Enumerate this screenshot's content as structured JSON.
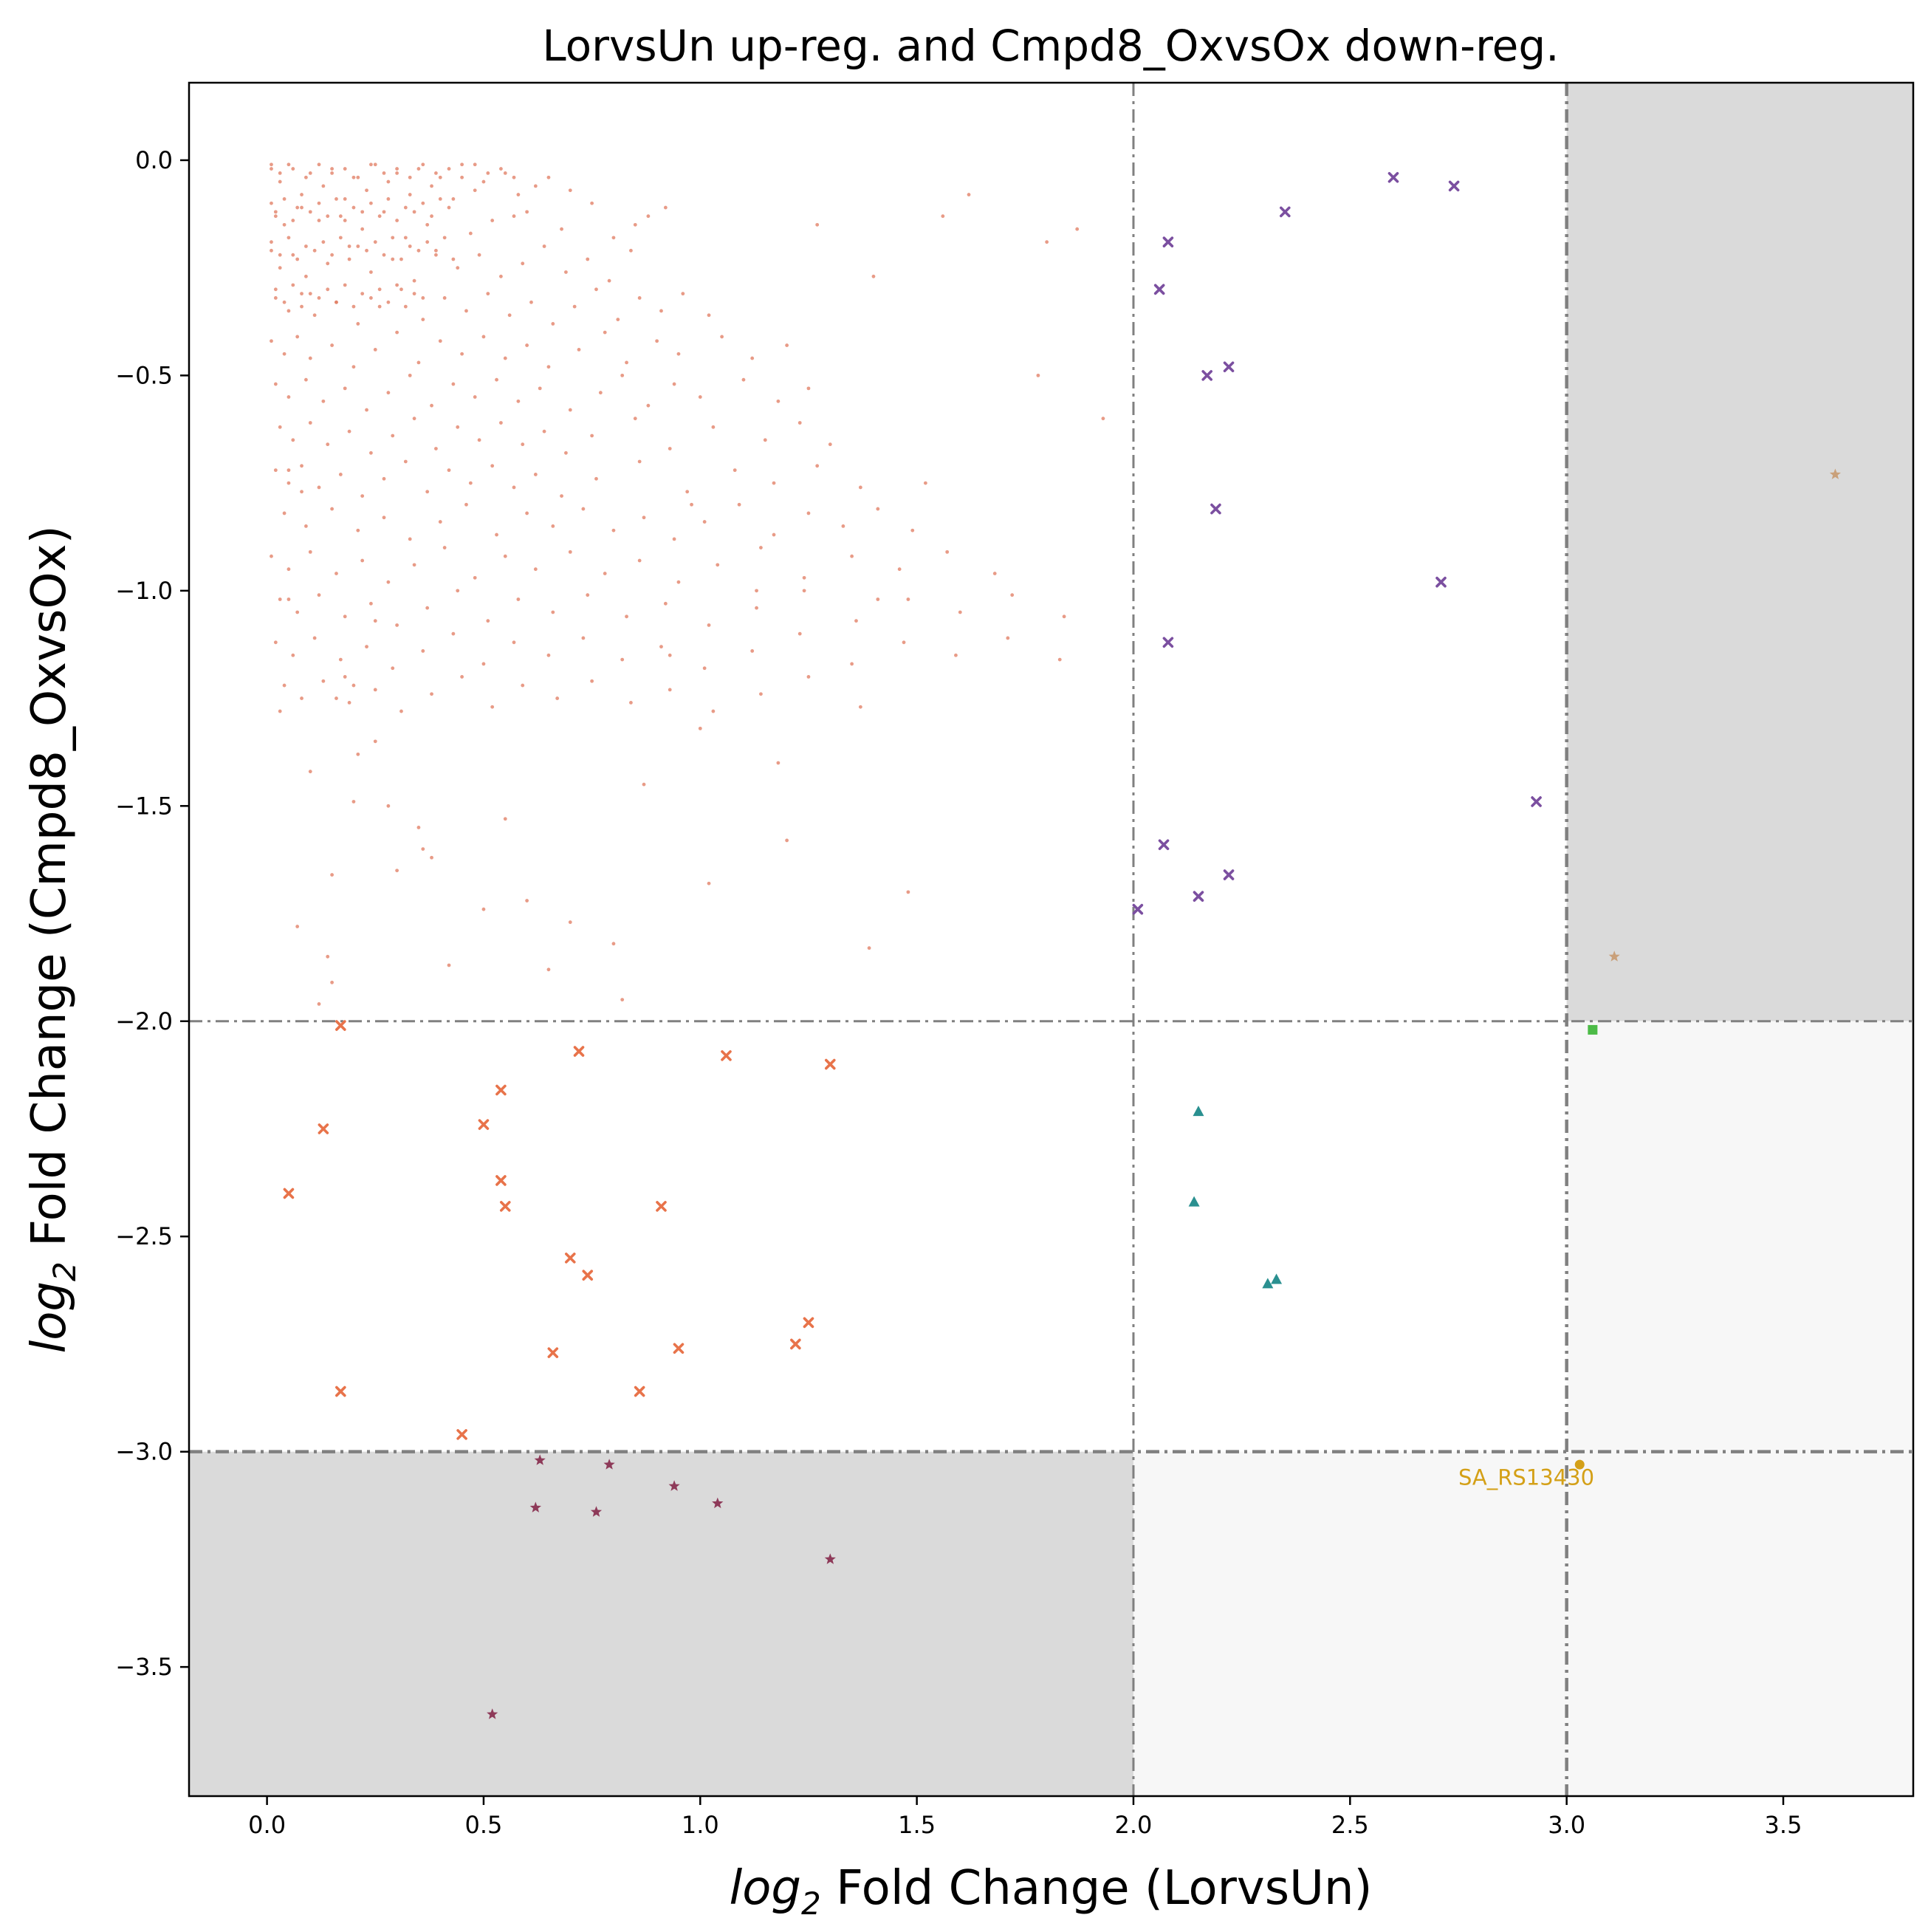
{
  "chart_data": {
    "type": "scatter",
    "title": "LorvsUn up-reg. and Cmpd8_OxvsOx down-reg.",
    "xlabel_prefix": "log",
    "xlabel_sub": "2",
    "xlabel_rest": " Fold Change (LorvsUn)",
    "ylabel_prefix": "log",
    "ylabel_sub": "2",
    "ylabel_rest": " Fold Change (Cmpd8_OxvsOx)",
    "xlim": [
      -0.18,
      3.8
    ],
    "ylim": [
      -3.8,
      0.18
    ],
    "xticks": [
      0.0,
      0.5,
      1.0,
      1.5,
      2.0,
      2.5,
      3.0,
      3.5
    ],
    "xtick_labels": [
      "0.0",
      "0.5",
      "1.0",
      "1.5",
      "2.0",
      "2.5",
      "3.0",
      "3.5"
    ],
    "yticks": [
      0.0,
      -0.5,
      -1.0,
      -1.5,
      -2.0,
      -2.5,
      -3.0,
      -3.5
    ],
    "ytick_labels": [
      "0.0",
      "−0.5",
      "−1.0",
      "−1.5",
      "−2.0",
      "−2.5",
      "−3.0",
      "−3.5"
    ],
    "grid": false,
    "threshold_lines": {
      "x": [
        2.0,
        3.0
      ],
      "y": [
        -2.0,
        -3.0
      ]
    },
    "shaded_regions": [
      {
        "x": [
          3.0,
          3.8
        ],
        "y": [
          -2.0,
          0.18
        ],
        "color": "#dadada"
      },
      {
        "x": [
          -0.18,
          2.0
        ],
        "y": [
          -3.8,
          -3.0
        ],
        "color": "#dadada"
      },
      {
        "x": [
          3.0,
          3.8
        ],
        "y": [
          -3.0,
          -2.0
        ],
        "color": "#f7f7f7"
      },
      {
        "x": [
          2.0,
          3.8
        ],
        "y": [
          -3.8,
          -3.0
        ],
        "color": "#f7f7f7"
      }
    ],
    "annotations": [
      {
        "text": "SA_RS13430",
        "x": 2.75,
        "y": -3.06,
        "color": "#d4a017"
      }
    ],
    "series": [
      {
        "marker": "dot",
        "color": "#e07a5f",
        "x": [
          0.01,
          0.03,
          0.05,
          0.08,
          0.1,
          0.13,
          0.15,
          0.18,
          0.2,
          0.23,
          0.25,
          0.28,
          0.3,
          0.33,
          0.35,
          0.38,
          0.4,
          0.43,
          0.45,
          0.48,
          0.5,
          0.55,
          0.58,
          0.62,
          0.65,
          0.7,
          0.02,
          0.04,
          0.07,
          0.12,
          0.17,
          0.22,
          0.27,
          0.32,
          0.37,
          0.42,
          0.47,
          0.52,
          0.57,
          0.6,
          0.68,
          0.75,
          0.8,
          0.85,
          0.88,
          0.92,
          0.01,
          0.03,
          0.06,
          0.09,
          0.14,
          0.19,
          0.24,
          0.29,
          0.34,
          0.39,
          0.44,
          0.49,
          0.54,
          0.59,
          0.64,
          0.69,
          0.74,
          0.79,
          0.84,
          0.02,
          0.05,
          0.08,
          0.11,
          0.16,
          0.21,
          0.26,
          0.31,
          0.36,
          0.41,
          0.46,
          0.51,
          0.56,
          0.61,
          0.66,
          0.71,
          0.76,
          0.81,
          0.86,
          0.91,
          0.96,
          1.02,
          0.01,
          0.04,
          0.07,
          0.1,
          0.15,
          0.2,
          0.25,
          0.3,
          0.35,
          0.4,
          0.45,
          0.5,
          0.55,
          0.6,
          0.65,
          0.72,
          0.78,
          0.83,
          0.9,
          0.95,
          1.05,
          1.12,
          1.2,
          0.02,
          0.05,
          0.09,
          0.13,
          0.18,
          0.23,
          0.28,
          0.33,
          0.38,
          0.43,
          0.48,
          0.53,
          0.58,
          0.63,
          0.7,
          0.77,
          0.82,
          0.88,
          0.94,
          1.0,
          1.1,
          1.18,
          1.25,
          0.03,
          0.06,
          0.1,
          0.14,
          0.19,
          0.24,
          0.29,
          0.34,
          0.39,
          0.44,
          0.49,
          0.54,
          0.59,
          0.64,
          0.69,
          0.75,
          0.85,
          0.93,
          1.03,
          1.15,
          1.23,
          1.3,
          0.02,
          0.05,
          0.08,
          0.12,
          0.17,
          0.22,
          0.27,
          0.32,
          0.37,
          0.42,
          0.47,
          0.52,
          0.57,
          0.62,
          0.68,
          0.76,
          0.86,
          0.97,
          1.08,
          1.17,
          1.27,
          1.37,
          0.04,
          0.09,
          0.15,
          0.21,
          0.27,
          0.33,
          0.4,
          0.46,
          0.53,
          0.6,
          0.66,
          0.73,
          0.8,
          0.87,
          0.94,
          1.01,
          1.09,
          1.17,
          1.25,
          1.33,
          1.41,
          1.49,
          0.01,
          0.05,
          0.1,
          0.16,
          0.22,
          0.28,
          0.34,
          0.41,
          0.48,
          0.55,
          0.62,
          0.7,
          0.78,
          0.86,
          0.95,
          1.04,
          1.14,
          1.24,
          1.35,
          1.46,
          1.57,
          1.68,
          0.03,
          0.07,
          0.12,
          0.18,
          0.24,
          0.3,
          0.37,
          0.44,
          0.51,
          0.58,
          0.66,
          0.74,
          0.83,
          0.92,
          1.02,
          1.13,
          1.24,
          1.36,
          1.48,
          1.6,
          1.72,
          1.84,
          0.02,
          0.06,
          0.11,
          0.17,
          0.23,
          0.29,
          0.36,
          0.43,
          0.5,
          0.57,
          0.65,
          0.73,
          0.82,
          0.91,
          1.01,
          1.12,
          1.23,
          1.35,
          1.47,
          1.59,
          1.71,
          1.83,
          0.04,
          0.08,
          0.13,
          0.19,
          0.25,
          0.31,
          0.38,
          0.45,
          0.52,
          0.59,
          0.67,
          0.75,
          0.84,
          0.93,
          1.03,
          1.14,
          1.25,
          1.37,
          0.01,
          0.03,
          0.06,
          0.09,
          0.12,
          0.15,
          0.18,
          0.21,
          0.24,
          0.27,
          0.3,
          0.33,
          0.36,
          0.39,
          0.42,
          0.45,
          0.48,
          0.51,
          0.54,
          0.57,
          0.01,
          0.02,
          0.04,
          0.06,
          0.08,
          0.1,
          0.12,
          0.14,
          0.16,
          0.18,
          0.2,
          0.22,
          0.24,
          0.26,
          0.28,
          0.3,
          0.32,
          0.34,
          0.36,
          0.38,
          0.4,
          0.01,
          0.03,
          0.05,
          0.07,
          0.09,
          0.11,
          0.13,
          0.15,
          0.17,
          0.19,
          0.21,
          0.23,
          0.25,
          0.27,
          0.29,
          0.31,
          0.33,
          0.35,
          0.37,
          0.39,
          0.41,
          0.43,
          0.02,
          0.04,
          0.06,
          0.08,
          0.1,
          0.12,
          0.14,
          0.16,
          0.18,
          0.2,
          0.22,
          0.24,
          0.26,
          0.28,
          0.3,
          0.32,
          0.34,
          0.36,
          1.8,
          1.87,
          1.93,
          1.78,
          1.62,
          1.56,
          1.52,
          1.41,
          1.4,
          1.27,
          1.13,
          0.98,
          0.93,
          0.82,
          0.7,
          0.55,
          0.42,
          0.35,
          0.28,
          0.2,
          0.18,
          0.15,
          0.12,
          0.08,
          0.05,
          0.05,
          0.1,
          0.15,
          0.2,
          0.25,
          0.3,
          0.16,
          0.21,
          0.36,
          0.6,
          0.87,
          1.0,
          1.18,
          1.39,
          1.48,
          1.2,
          1.02,
          0.8,
          0.65,
          0.5,
          0.38,
          0.25,
          0.14,
          0.07,
          0.03
        ],
        "y": [
          -0.02,
          -0.05,
          -0.01,
          -0.08,
          -0.03,
          -0.06,
          -0.02,
          -0.09,
          -0.04,
          -0.07,
          -0.01,
          -0.05,
          -0.03,
          -0.08,
          -0.02,
          -0.06,
          -0.04,
          -0.09,
          -0.01,
          -0.07,
          -0.05,
          -0.03,
          -0.08,
          -0.06,
          -0.04,
          -0.07,
          -0.12,
          -0.15,
          -0.11,
          -0.14,
          -0.13,
          -0.16,
          -0.12,
          -0.18,
          -0.15,
          -0.11,
          -0.17,
          -0.14,
          -0.13,
          -0.12,
          -0.16,
          -0.1,
          -0.18,
          -0.15,
          -0.13,
          -0.11,
          -0.21,
          -0.25,
          -0.22,
          -0.27,
          -0.24,
          -0.2,
          -0.26,
          -0.23,
          -0.28,
          -0.21,
          -0.25,
          -0.22,
          -0.27,
          -0.24,
          -0.2,
          -0.26,
          -0.23,
          -0.28,
          -0.21,
          -0.32,
          -0.35,
          -0.31,
          -0.36,
          -0.33,
          -0.38,
          -0.34,
          -0.3,
          -0.37,
          -0.32,
          -0.35,
          -0.31,
          -0.36,
          -0.33,
          -0.38,
          -0.34,
          -0.3,
          -0.37,
          -0.32,
          -0.35,
          -0.31,
          -0.36,
          -0.42,
          -0.45,
          -0.41,
          -0.46,
          -0.43,
          -0.48,
          -0.44,
          -0.4,
          -0.47,
          -0.42,
          -0.45,
          -0.41,
          -0.46,
          -0.43,
          -0.48,
          -0.44,
          -0.4,
          -0.47,
          -0.42,
          -0.45,
          -0.41,
          -0.46,
          -0.43,
          -0.52,
          -0.55,
          -0.51,
          -0.56,
          -0.53,
          -0.58,
          -0.54,
          -0.5,
          -0.57,
          -0.52,
          -0.55,
          -0.51,
          -0.56,
          -0.53,
          -0.58,
          -0.54,
          -0.5,
          -0.57,
          -0.52,
          -0.55,
          -0.51,
          -0.56,
          -0.53,
          -0.62,
          -0.65,
          -0.61,
          -0.66,
          -0.63,
          -0.68,
          -0.64,
          -0.6,
          -0.67,
          -0.62,
          -0.65,
          -0.61,
          -0.66,
          -0.63,
          -0.68,
          -0.64,
          -0.6,
          -0.67,
          -0.62,
          -0.65,
          -0.61,
          -0.66,
          -0.72,
          -0.75,
          -0.71,
          -0.76,
          -0.73,
          -0.78,
          -0.74,
          -0.7,
          -0.77,
          -0.72,
          -0.75,
          -0.71,
          -0.76,
          -0.73,
          -0.78,
          -0.74,
          -0.7,
          -0.77,
          -0.72,
          -0.75,
          -0.71,
          -0.76,
          -0.82,
          -0.85,
          -0.81,
          -0.86,
          -0.83,
          -0.88,
          -0.84,
          -0.8,
          -0.87,
          -0.82,
          -0.85,
          -0.81,
          -0.86,
          -0.83,
          -0.88,
          -0.84,
          -0.8,
          -0.87,
          -0.82,
          -0.85,
          -0.81,
          -0.86,
          -0.92,
          -0.95,
          -0.91,
          -0.96,
          -0.93,
          -0.98,
          -0.94,
          -0.9,
          -0.97,
          -0.92,
          -0.95,
          -0.91,
          -0.96,
          -0.93,
          -0.98,
          -0.94,
          -0.9,
          -0.97,
          -0.92,
          -0.95,
          -0.91,
          -0.96,
          -1.02,
          -1.05,
          -1.01,
          -1.06,
          -1.03,
          -1.08,
          -1.04,
          -1.0,
          -1.07,
          -1.02,
          -1.05,
          -1.01,
          -1.06,
          -1.03,
          -1.08,
          -1.04,
          -1.0,
          -1.07,
          -1.02,
          -1.05,
          -1.01,
          -1.06,
          -1.12,
          -1.15,
          -1.11,
          -1.16,
          -1.13,
          -1.18,
          -1.14,
          -1.1,
          -1.17,
          -1.12,
          -1.15,
          -1.11,
          -1.16,
          -1.13,
          -1.18,
          -1.14,
          -1.1,
          -1.17,
          -1.12,
          -1.15,
          -1.11,
          -1.16,
          -1.22,
          -1.25,
          -1.21,
          -1.26,
          -1.23,
          -1.28,
          -1.24,
          -1.2,
          -1.27,
          -1.22,
          -1.25,
          -1.21,
          -1.26,
          -1.23,
          -1.28,
          -1.24,
          -1.2,
          -1.27,
          -0.01,
          -0.03,
          -0.02,
          -0.04,
          -0.01,
          -0.03,
          -0.02,
          -0.04,
          -0.01,
          -0.03,
          -0.02,
          -0.04,
          -0.01,
          -0.03,
          -0.02,
          -0.04,
          -0.01,
          -0.03,
          -0.02,
          -0.04,
          -0.1,
          -0.13,
          -0.09,
          -0.14,
          -0.11,
          -0.12,
          -0.1,
          -0.13,
          -0.09,
          -0.14,
          -0.11,
          -0.12,
          -0.1,
          -0.13,
          -0.09,
          -0.14,
          -0.11,
          -0.12,
          -0.1,
          -0.13,
          -0.09,
          -0.19,
          -0.22,
          -0.18,
          -0.23,
          -0.2,
          -0.21,
          -0.19,
          -0.22,
          -0.18,
          -0.23,
          -0.2,
          -0.21,
          -0.19,
          -0.22,
          -0.18,
          -0.23,
          -0.2,
          -0.21,
          -0.19,
          -0.22,
          -0.18,
          -0.23,
          -0.3,
          -0.33,
          -0.29,
          -0.34,
          -0.31,
          -0.32,
          -0.3,
          -0.33,
          -0.29,
          -0.34,
          -0.31,
          -0.32,
          -0.3,
          -0.33,
          -0.29,
          -0.34,
          -0.31,
          -0.32,
          -0.19,
          -0.16,
          -0.6,
          -0.5,
          -0.08,
          -0.13,
          -0.75,
          -1.02,
          -0.27,
          -0.15,
          -1.0,
          -0.8,
          -1.15,
          -1.95,
          -1.77,
          -1.53,
          -1.87,
          -1.55,
          -1.5,
          -1.49,
          -1.2,
          -1.91,
          -1.96,
          -0.77,
          -0.72,
          -1.02,
          -1.42,
          -1.66,
          -1.22,
          -1.07,
          -1.65,
          -1.25,
          -1.38,
          -1.6,
          -1.72,
          -1.45,
          -1.32,
          -1.4,
          -1.83,
          -1.7,
          -1.58,
          -1.68,
          -1.82,
          -1.88,
          -1.74,
          -1.62,
          -1.35,
          -1.85,
          -1.78,
          -1.28
        ]
      },
      {
        "marker": "x",
        "color": "#e8734a",
        "x": [
          0.17,
          0.13,
          0.05,
          0.17,
          0.45,
          0.5,
          0.54,
          0.54,
          0.55,
          0.7,
          0.72,
          0.74,
          0.66,
          0.86,
          0.91,
          0.95,
          1.06,
          1.22,
          1.25,
          1.3
        ],
        "y": [
          -2.01,
          -2.25,
          -2.4,
          -2.86,
          -2.96,
          -2.24,
          -2.16,
          -2.37,
          -2.43,
          -2.55,
          -2.07,
          -2.59,
          -2.77,
          -2.86,
          -2.43,
          -2.76,
          -2.08,
          -2.75,
          -2.7,
          -2.1
        ]
      },
      {
        "marker": "x",
        "color": "#7b4fa0",
        "x": [
          2.08,
          2.06,
          2.17,
          2.22,
          2.19,
          2.08,
          2.35,
          2.6,
          2.74,
          2.71,
          2.93,
          2.07,
          2.15,
          2.22,
          2.01
        ],
        "y": [
          -0.19,
          -0.3,
          -0.5,
          -0.48,
          -0.81,
          -1.12,
          -0.12,
          -0.04,
          -0.06,
          -0.98,
          -1.49,
          -1.59,
          -1.71,
          -1.66,
          -1.74
        ]
      },
      {
        "marker": "triangle",
        "color": "#2a9090",
        "x": [
          2.15,
          2.14,
          2.31,
          2.33
        ],
        "y": [
          -2.21,
          -2.42,
          -2.61,
          -2.6
        ]
      },
      {
        "marker": "star",
        "color": "#8e3a59",
        "x": [
          0.63,
          0.62,
          0.76,
          0.79,
          0.94,
          1.04,
          1.3,
          0.52
        ],
        "y": [
          -3.02,
          -3.13,
          -3.14,
          -3.03,
          -3.08,
          -3.12,
          -3.25,
          -3.61
        ]
      },
      {
        "marker": "star",
        "color": "#c9a07a",
        "x": [
          3.62,
          3.11
        ],
        "y": [
          -0.73,
          -1.85
        ]
      },
      {
        "marker": "square",
        "color": "#4cbb47",
        "x": [
          3.06
        ],
        "y": [
          -2.02
        ]
      },
      {
        "marker": "circle",
        "color": "#d4a017",
        "x": [
          3.03
        ],
        "y": [
          -3.03
        ]
      }
    ]
  }
}
